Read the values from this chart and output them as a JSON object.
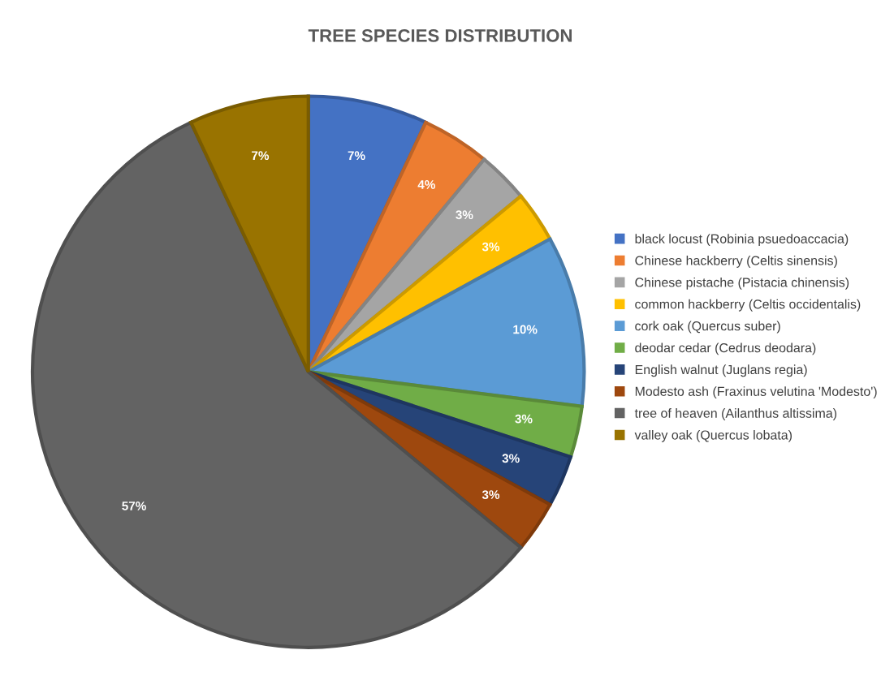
{
  "chart_data": {
    "type": "pie",
    "title": "TREE SPECIES DISTRIBUTION",
    "categories": [
      "black locust (Robinia psuedoaccacia)",
      "Chinese hackberry (Celtis sinensis)",
      "Chinese pistache (Pistacia chinensis)",
      "common hackberry (Celtis occidentalis)",
      "cork oak (Quercus suber)",
      "deodar cedar (Cedrus deodara)",
      "English walnut (Juglans regia)",
      "Modesto ash (Fraxinus velutina 'Modesto')",
      "tree of heaven (Ailanthus altissima)",
      "valley oak (Quercus lobata)"
    ],
    "values": [
      7,
      4,
      3,
      3,
      10,
      3,
      3,
      3,
      57,
      7
    ],
    "value_labels": [
      "7%",
      "4%",
      "3%",
      "3%",
      "10%",
      "3%",
      "3%",
      "3%",
      "57%",
      "7%"
    ],
    "colors": [
      "#4472c4",
      "#ed7d31",
      "#a5a5a5",
      "#ffc000",
      "#5b9bd5",
      "#70ad47",
      "#264478",
      "#9e480e",
      "#636363",
      "#997300"
    ],
    "legend": "right"
  }
}
